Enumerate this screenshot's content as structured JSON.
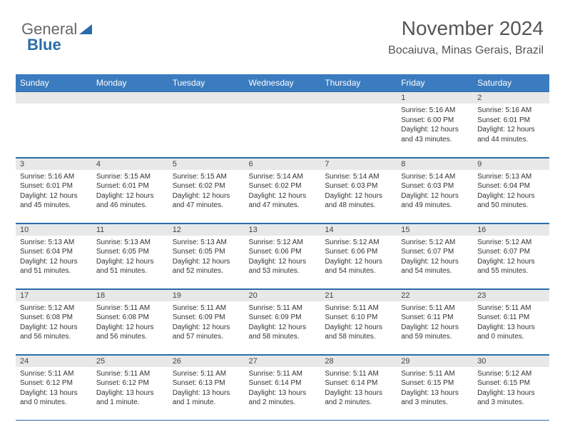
{
  "logo": {
    "text1": "General",
    "text2": "Blue"
  },
  "title": "November 2024",
  "location": "Bocaiuva, Minas Gerais, Brazil",
  "colors": {
    "header_bg": "#3b7bbf",
    "header_text": "#ffffff",
    "daynum_bg": "#e8e8e8",
    "border": "#2b6ca8",
    "body_text": "#333333",
    "title_text": "#555555"
  },
  "weekdays": [
    "Sunday",
    "Monday",
    "Tuesday",
    "Wednesday",
    "Thursday",
    "Friday",
    "Saturday"
  ],
  "weeks": [
    [
      {
        "n": "",
        "sr": "",
        "ss": "",
        "dl": ""
      },
      {
        "n": "",
        "sr": "",
        "ss": "",
        "dl": ""
      },
      {
        "n": "",
        "sr": "",
        "ss": "",
        "dl": ""
      },
      {
        "n": "",
        "sr": "",
        "ss": "",
        "dl": ""
      },
      {
        "n": "",
        "sr": "",
        "ss": "",
        "dl": ""
      },
      {
        "n": "1",
        "sr": "Sunrise: 5:16 AM",
        "ss": "Sunset: 6:00 PM",
        "dl": "Daylight: 12 hours and 43 minutes."
      },
      {
        "n": "2",
        "sr": "Sunrise: 5:16 AM",
        "ss": "Sunset: 6:01 PM",
        "dl": "Daylight: 12 hours and 44 minutes."
      }
    ],
    [
      {
        "n": "3",
        "sr": "Sunrise: 5:16 AM",
        "ss": "Sunset: 6:01 PM",
        "dl": "Daylight: 12 hours and 45 minutes."
      },
      {
        "n": "4",
        "sr": "Sunrise: 5:15 AM",
        "ss": "Sunset: 6:01 PM",
        "dl": "Daylight: 12 hours and 46 minutes."
      },
      {
        "n": "5",
        "sr": "Sunrise: 5:15 AM",
        "ss": "Sunset: 6:02 PM",
        "dl": "Daylight: 12 hours and 47 minutes."
      },
      {
        "n": "6",
        "sr": "Sunrise: 5:14 AM",
        "ss": "Sunset: 6:02 PM",
        "dl": "Daylight: 12 hours and 47 minutes."
      },
      {
        "n": "7",
        "sr": "Sunrise: 5:14 AM",
        "ss": "Sunset: 6:03 PM",
        "dl": "Daylight: 12 hours and 48 minutes."
      },
      {
        "n": "8",
        "sr": "Sunrise: 5:14 AM",
        "ss": "Sunset: 6:03 PM",
        "dl": "Daylight: 12 hours and 49 minutes."
      },
      {
        "n": "9",
        "sr": "Sunrise: 5:13 AM",
        "ss": "Sunset: 6:04 PM",
        "dl": "Daylight: 12 hours and 50 minutes."
      }
    ],
    [
      {
        "n": "10",
        "sr": "Sunrise: 5:13 AM",
        "ss": "Sunset: 6:04 PM",
        "dl": "Daylight: 12 hours and 51 minutes."
      },
      {
        "n": "11",
        "sr": "Sunrise: 5:13 AM",
        "ss": "Sunset: 6:05 PM",
        "dl": "Daylight: 12 hours and 51 minutes."
      },
      {
        "n": "12",
        "sr": "Sunrise: 5:13 AM",
        "ss": "Sunset: 6:05 PM",
        "dl": "Daylight: 12 hours and 52 minutes."
      },
      {
        "n": "13",
        "sr": "Sunrise: 5:12 AM",
        "ss": "Sunset: 6:06 PM",
        "dl": "Daylight: 12 hours and 53 minutes."
      },
      {
        "n": "14",
        "sr": "Sunrise: 5:12 AM",
        "ss": "Sunset: 6:06 PM",
        "dl": "Daylight: 12 hours and 54 minutes."
      },
      {
        "n": "15",
        "sr": "Sunrise: 5:12 AM",
        "ss": "Sunset: 6:07 PM",
        "dl": "Daylight: 12 hours and 54 minutes."
      },
      {
        "n": "16",
        "sr": "Sunrise: 5:12 AM",
        "ss": "Sunset: 6:07 PM",
        "dl": "Daylight: 12 hours and 55 minutes."
      }
    ],
    [
      {
        "n": "17",
        "sr": "Sunrise: 5:12 AM",
        "ss": "Sunset: 6:08 PM",
        "dl": "Daylight: 12 hours and 56 minutes."
      },
      {
        "n": "18",
        "sr": "Sunrise: 5:11 AM",
        "ss": "Sunset: 6:08 PM",
        "dl": "Daylight: 12 hours and 56 minutes."
      },
      {
        "n": "19",
        "sr": "Sunrise: 5:11 AM",
        "ss": "Sunset: 6:09 PM",
        "dl": "Daylight: 12 hours and 57 minutes."
      },
      {
        "n": "20",
        "sr": "Sunrise: 5:11 AM",
        "ss": "Sunset: 6:09 PM",
        "dl": "Daylight: 12 hours and 58 minutes."
      },
      {
        "n": "21",
        "sr": "Sunrise: 5:11 AM",
        "ss": "Sunset: 6:10 PM",
        "dl": "Daylight: 12 hours and 58 minutes."
      },
      {
        "n": "22",
        "sr": "Sunrise: 5:11 AM",
        "ss": "Sunset: 6:11 PM",
        "dl": "Daylight: 12 hours and 59 minutes."
      },
      {
        "n": "23",
        "sr": "Sunrise: 5:11 AM",
        "ss": "Sunset: 6:11 PM",
        "dl": "Daylight: 13 hours and 0 minutes."
      }
    ],
    [
      {
        "n": "24",
        "sr": "Sunrise: 5:11 AM",
        "ss": "Sunset: 6:12 PM",
        "dl": "Daylight: 13 hours and 0 minutes."
      },
      {
        "n": "25",
        "sr": "Sunrise: 5:11 AM",
        "ss": "Sunset: 6:12 PM",
        "dl": "Daylight: 13 hours and 1 minute."
      },
      {
        "n": "26",
        "sr": "Sunrise: 5:11 AM",
        "ss": "Sunset: 6:13 PM",
        "dl": "Daylight: 13 hours and 1 minute."
      },
      {
        "n": "27",
        "sr": "Sunrise: 5:11 AM",
        "ss": "Sunset: 6:14 PM",
        "dl": "Daylight: 13 hours and 2 minutes."
      },
      {
        "n": "28",
        "sr": "Sunrise: 5:11 AM",
        "ss": "Sunset: 6:14 PM",
        "dl": "Daylight: 13 hours and 2 minutes."
      },
      {
        "n": "29",
        "sr": "Sunrise: 5:11 AM",
        "ss": "Sunset: 6:15 PM",
        "dl": "Daylight: 13 hours and 3 minutes."
      },
      {
        "n": "30",
        "sr": "Sunrise: 5:12 AM",
        "ss": "Sunset: 6:15 PM",
        "dl": "Daylight: 13 hours and 3 minutes."
      }
    ]
  ]
}
